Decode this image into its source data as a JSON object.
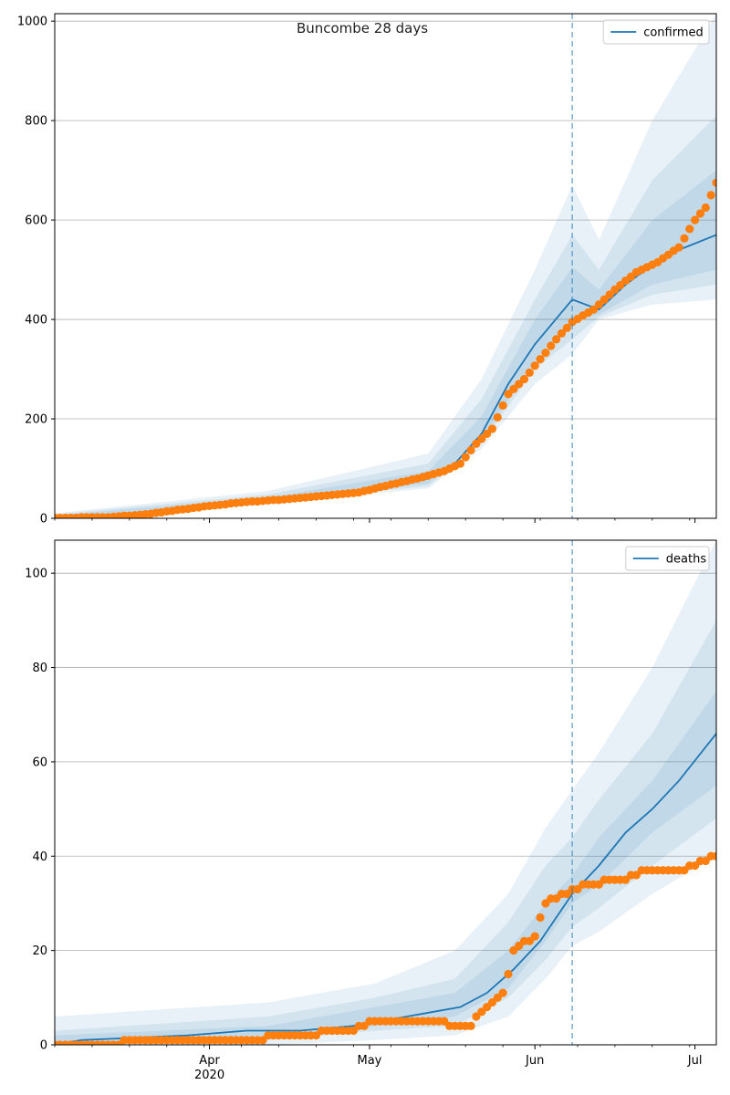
{
  "chart_data": [
    {
      "type": "line",
      "title": "Buncombe 28 days",
      "legend": [
        "confirmed"
      ],
      "legend_placement": "top-right",
      "grid": "horizontal",
      "x_axis": {
        "type": "date",
        "range": [
          "2020-03-03",
          "2020-07-05"
        ],
        "tick_labels": [
          "Apr\n2020",
          "May",
          "Jun",
          "Jul"
        ]
      },
      "ylim": [
        0,
        1015
      ],
      "yticks": [
        0,
        200,
        400,
        600,
        800,
        1000
      ],
      "forecast_start": "2020-06-08",
      "series": [
        {
          "name": "confirmed",
          "kind": "model-median-line",
          "x": [
            "2020-03-03",
            "2020-03-13",
            "2020-03-23",
            "2020-04-02",
            "2020-04-12",
            "2020-04-22",
            "2020-05-02",
            "2020-05-12",
            "2020-05-17",
            "2020-05-22",
            "2020-05-27",
            "2020-06-01",
            "2020-06-08",
            "2020-06-13",
            "2020-06-18",
            "2020-06-23",
            "2020-06-28",
            "2020-07-05"
          ],
          "y": [
            0,
            5,
            10,
            25,
            35,
            42,
            55,
            80,
            110,
            170,
            270,
            350,
            440,
            420,
            470,
            510,
            540,
            570
          ]
        },
        {
          "kind": "observed-points",
          "x": [
            "2020-03-03",
            "2020-03-13",
            "2020-03-20",
            "2020-03-27",
            "2020-04-01",
            "2020-04-08",
            "2020-04-15",
            "2020-04-22",
            "2020-04-29",
            "2020-05-05",
            "2020-05-10",
            "2020-05-15",
            "2020-05-18",
            "2020-05-21",
            "2020-05-24",
            "2020-05-27",
            "2020-05-30",
            "2020-06-02",
            "2020-06-05",
            "2020-06-08",
            "2020-06-12",
            "2020-06-16",
            "2020-06-20",
            "2020-06-24",
            "2020-06-28",
            "2020-07-01",
            "2020-07-03",
            "2020-07-05"
          ],
          "y": [
            1,
            2,
            8,
            18,
            25,
            33,
            38,
            45,
            52,
            68,
            80,
            95,
            110,
            150,
            180,
            250,
            280,
            320,
            360,
            395,
            420,
            460,
            495,
            515,
            545,
            600,
            625,
            675
          ]
        }
      ],
      "uncertainty_bands": [
        {
          "x": [
            "2020-03-03",
            "2020-04-12",
            "2020-05-12",
            "2020-05-22",
            "2020-06-01",
            "2020-06-08",
            "2020-06-13",
            "2020-06-23",
            "2020-07-05"
          ],
          "lower": [
            0,
            30,
            60,
            140,
            270,
            330,
            400,
            430,
            440
          ],
          "upper": [
            10,
            55,
            130,
            280,
            500,
            670,
            560,
            800,
            1015
          ]
        },
        {
          "x": [
            "2020-03-03",
            "2020-04-12",
            "2020-05-12",
            "2020-05-22",
            "2020-06-01",
            "2020-06-08",
            "2020-06-13",
            "2020-06-23",
            "2020-07-05"
          ],
          "lower": [
            0,
            32,
            65,
            150,
            300,
            360,
            405,
            450,
            470
          ],
          "upper": [
            8,
            48,
            110,
            240,
            440,
            570,
            500,
            680,
            810
          ]
        },
        {
          "x": [
            "2020-03-03",
            "2020-04-12",
            "2020-05-12",
            "2020-05-22",
            "2020-06-01",
            "2020-06-08",
            "2020-06-13",
            "2020-06-23",
            "2020-07-05"
          ],
          "lower": [
            0,
            33,
            70,
            158,
            318,
            395,
            410,
            470,
            500
          ],
          "upper": [
            6,
            42,
            95,
            205,
            400,
            505,
            460,
            600,
            700
          ]
        }
      ]
    },
    {
      "type": "line",
      "legend": [
        "deaths"
      ],
      "legend_placement": "top-right",
      "grid": "horizontal",
      "x_axis": {
        "type": "date",
        "range": [
          "2020-03-03",
          "2020-07-05"
        ],
        "tick_labels": [
          "Apr\n2020",
          "May",
          "Jun",
          "Jul"
        ]
      },
      "ylim": [
        0,
        107
      ],
      "yticks": [
        0,
        20,
        40,
        60,
        80,
        100
      ],
      "forecast_start": "2020-06-08",
      "series": [
        {
          "name": "deaths",
          "kind": "model-median-line",
          "x": [
            "2020-03-03",
            "2020-03-08",
            "2020-03-28",
            "2020-04-08",
            "2020-04-18",
            "2020-04-28",
            "2020-05-08",
            "2020-05-13",
            "2020-05-18",
            "2020-05-23",
            "2020-05-28",
            "2020-06-02",
            "2020-06-08",
            "2020-06-13",
            "2020-06-18",
            "2020-06-23",
            "2020-06-28",
            "2020-07-05"
          ],
          "y": [
            0,
            1,
            2,
            3,
            3,
            4,
            6,
            7,
            8,
            11,
            16,
            22,
            32,
            38,
            45,
            50,
            56,
            66
          ]
        },
        {
          "kind": "observed-points",
          "x": [
            "2020-03-03",
            "2020-03-28",
            "2020-04-08",
            "2020-04-15",
            "2020-04-28",
            "2020-05-01",
            "2020-05-10",
            "2020-05-20",
            "2020-05-22",
            "2020-05-26",
            "2020-05-27",
            "2020-05-28",
            "2020-06-01",
            "2020-06-03",
            "2020-06-07",
            "2020-06-10",
            "2020-06-18",
            "2020-06-22",
            "2020-06-28",
            "2020-07-05"
          ],
          "y": [
            0,
            1,
            1,
            2,
            3,
            5,
            5,
            4,
            7,
            11,
            15,
            20,
            23,
            30,
            32,
            34,
            35,
            37,
            37,
            40
          ]
        }
      ],
      "uncertainty_bands": [
        {
          "x": [
            "2020-03-03",
            "2020-04-12",
            "2020-05-02",
            "2020-05-17",
            "2020-05-27",
            "2020-06-03",
            "2020-06-08",
            "2020-06-13",
            "2020-06-23",
            "2020-07-05"
          ],
          "lower": [
            0,
            0,
            1,
            2,
            6,
            14,
            21,
            24,
            32,
            40
          ],
          "upper": [
            6,
            9,
            13,
            20,
            32,
            46,
            54,
            62,
            80,
            107
          ]
        },
        {
          "x": [
            "2020-03-03",
            "2020-04-12",
            "2020-05-02",
            "2020-05-17",
            "2020-05-27",
            "2020-06-03",
            "2020-06-08",
            "2020-06-13",
            "2020-06-23",
            "2020-07-05"
          ],
          "lower": [
            0,
            1,
            3,
            4,
            10,
            18,
            25,
            29,
            38,
            48
          ],
          "upper": [
            3,
            6,
            10,
            14,
            26,
            38,
            44,
            52,
            66,
            90
          ]
        },
        {
          "x": [
            "2020-03-03",
            "2020-04-12",
            "2020-05-02",
            "2020-05-17",
            "2020-05-27",
            "2020-06-03",
            "2020-06-08",
            "2020-06-13",
            "2020-06-23",
            "2020-07-05"
          ],
          "lower": [
            0,
            2,
            4,
            6,
            12,
            22,
            30,
            34,
            45,
            55
          ],
          "upper": [
            2,
            4,
            8,
            11,
            20,
            30,
            36,
            44,
            56,
            75
          ]
        }
      ]
    }
  ]
}
